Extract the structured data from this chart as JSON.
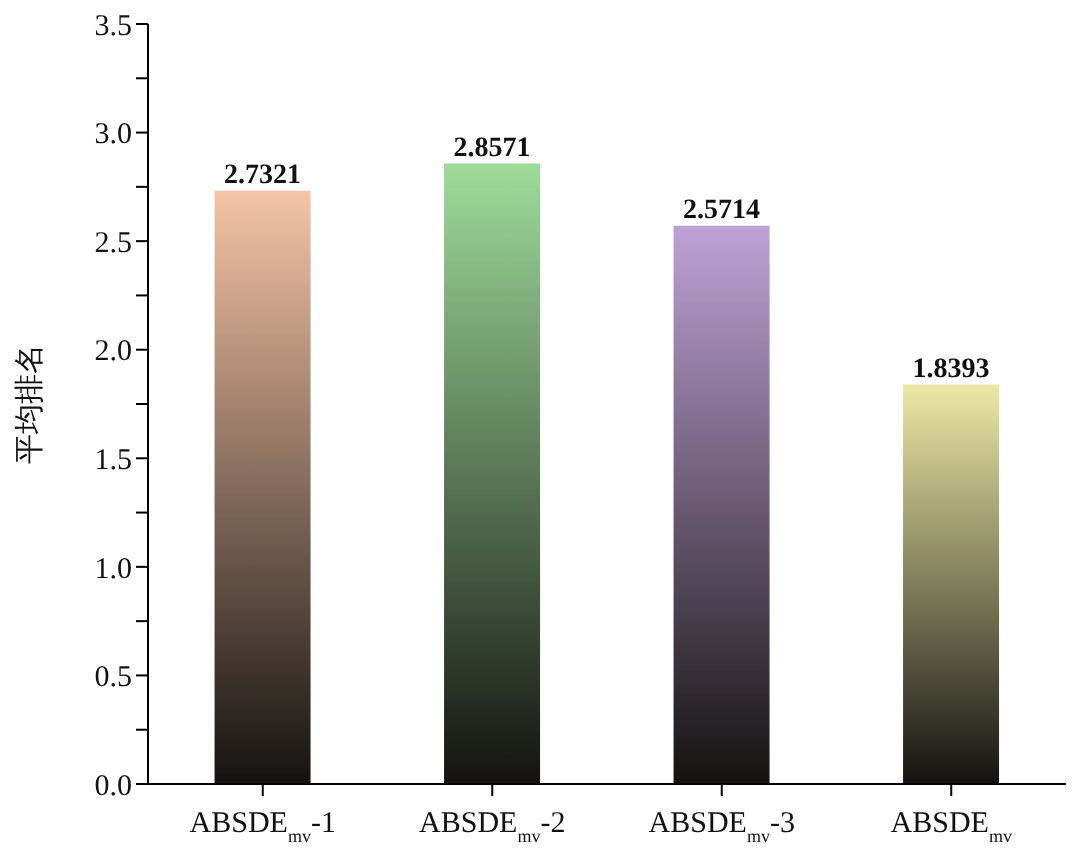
{
  "chart_data": {
    "type": "bar",
    "ylabel": "平均排名",
    "categories": [
      "ABSDE$_{mv}$-1",
      "ABSDE$_{mv}$-2",
      "ABSDE$_{mv}$-3",
      "ABSDE$_{mv}$"
    ],
    "values": [
      2.7321,
      2.8571,
      2.5714,
      1.8393
    ],
    "colors": [
      "#f5c4a6",
      "#9edc9a",
      "#bfa2d6",
      "#ece9a6"
    ],
    "ylim": [
      0,
      3.5
    ],
    "yticks": [
      {
        "value": 0,
        "label": "0.0"
      },
      {
        "value": 0.25,
        "label": null
      },
      0.5,
      {
        "value": 0.75,
        "label": null
      },
      {
        "value": 1,
        "label": "1.0"
      },
      {
        "value": 1.25,
        "label": null
      },
      1.5,
      {
        "value": 1.75,
        "label": null
      },
      {
        "value": 2,
        "label": "2.0"
      },
      {
        "value": 2.25,
        "label": null
      },
      2.5,
      {
        "value": 2.75,
        "label": null
      },
      {
        "value": 3,
        "label": "3.0"
      },
      {
        "value": 3.25,
        "label": null
      },
      3.5
    ],
    "data_labels": true,
    "grid": false,
    "legend": false
  }
}
